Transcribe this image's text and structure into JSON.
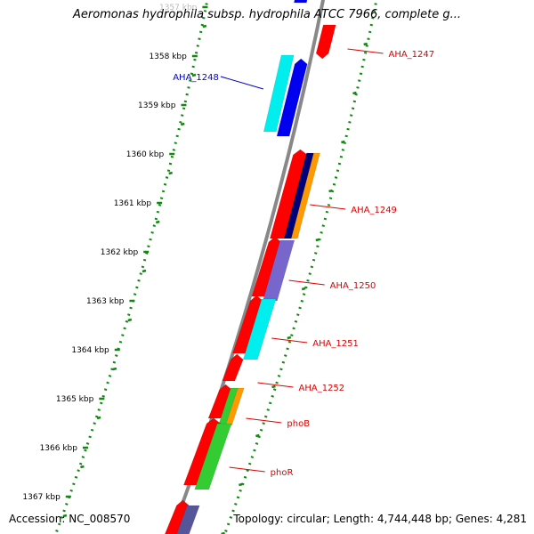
{
  "title": "Aeromonas hydrophila subsp. hydrophila ATCC 7966, complete g...",
  "footer": {
    "accession": "Accession: NC_008570",
    "topology": "Topology: circular; Length: 4,744,448 bp; Genes: 4,281"
  },
  "ticks": [
    {
      "label": "1357 kbp",
      "faded": true
    },
    {
      "label": "1358 kbp"
    },
    {
      "label": "1359 kbp"
    },
    {
      "label": "1360 kbp"
    },
    {
      "label": "1361 kbp"
    },
    {
      "label": "1362 kbp"
    },
    {
      "label": "1363 kbp"
    },
    {
      "label": "1364 kbp"
    },
    {
      "label": "1365 kbp"
    },
    {
      "label": "1366 kbp"
    },
    {
      "label": "1367 kbp"
    }
  ],
  "gene_labels": [
    {
      "name": "AHA_1247",
      "side": "right",
      "color": "#dd0000"
    },
    {
      "name": "AHA_1248",
      "side": "left",
      "color": "#0000cc"
    },
    {
      "name": "AHA_1249",
      "side": "right",
      "color": "#dd0000"
    },
    {
      "name": "AHA_1250",
      "side": "right",
      "color": "#dd0000"
    },
    {
      "name": "AHA_1251",
      "side": "right",
      "color": "#dd0000"
    },
    {
      "name": "AHA_1252",
      "side": "right",
      "color": "#dd0000"
    },
    {
      "name": "phoB",
      "side": "right",
      "color": "#dd0000"
    },
    {
      "name": "phoR",
      "side": "right",
      "color": "#dd0000"
    }
  ],
  "colors": {
    "backbone": "#888888",
    "ticks": "#118811",
    "red": "#ff0000",
    "blue": "#0000ee",
    "cyan": "#00eeee",
    "navy": "#000077",
    "orange": "#ff9900",
    "purple": "#7766cc",
    "green": "#33cc33",
    "slate": "#555599"
  }
}
